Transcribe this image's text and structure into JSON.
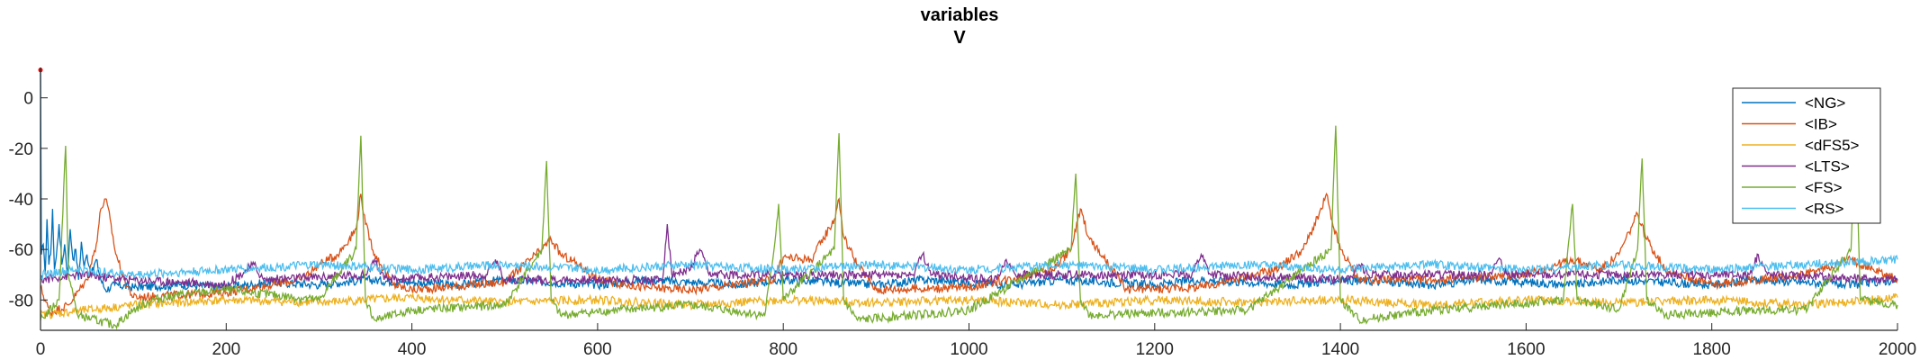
{
  "chart_data": {
    "type": "line",
    "title": "variables",
    "subtitle": "V",
    "xlabel": "",
    "ylabel": "",
    "xlim": [
      0,
      2000
    ],
    "ylim": [
      -92,
      12
    ],
    "xticks": [
      0,
      200,
      400,
      600,
      800,
      1000,
      1200,
      1400,
      1600,
      1800,
      2000
    ],
    "yticks": [
      0,
      -20,
      -40,
      -60,
      -80
    ],
    "grid": false,
    "legend_position": "top-right",
    "series": [
      {
        "name": "<NG>",
        "color": "#0072BD",
        "base": -74,
        "points": [
          [
            0,
            11
          ],
          [
            1,
            -62
          ],
          [
            3,
            -58
          ],
          [
            5,
            -70
          ],
          [
            7,
            -48
          ],
          [
            9,
            -66
          ],
          [
            11,
            -62
          ],
          [
            13,
            -44
          ],
          [
            15,
            -68
          ],
          [
            17,
            -63
          ],
          [
            20,
            -50
          ],
          [
            23,
            -66
          ],
          [
            26,
            -58
          ],
          [
            29,
            -70
          ],
          [
            32,
            -52
          ],
          [
            35,
            -64
          ],
          [
            38,
            -60
          ],
          [
            41,
            -72
          ],
          [
            44,
            -57
          ],
          [
            47,
            -67
          ],
          [
            50,
            -62
          ],
          [
            55,
            -70
          ],
          [
            60,
            -64
          ],
          [
            65,
            -72
          ],
          [
            70,
            -76
          ],
          [
            80,
            -74
          ],
          [
            100,
            -75
          ],
          [
            150,
            -74
          ],
          [
            200,
            -75
          ],
          [
            250,
            -73
          ],
          [
            300,
            -74
          ],
          [
            350,
            -72
          ],
          [
            400,
            -73
          ],
          [
            450,
            -74
          ],
          [
            500,
            -72
          ],
          [
            550,
            -73
          ],
          [
            600,
            -74
          ],
          [
            650,
            -72
          ],
          [
            700,
            -73
          ],
          [
            750,
            -74
          ],
          [
            800,
            -72
          ],
          [
            850,
            -73
          ],
          [
            900,
            -74
          ],
          [
            950,
            -72
          ],
          [
            1000,
            -73
          ],
          [
            1050,
            -74
          ],
          [
            1100,
            -72
          ],
          [
            1150,
            -73
          ],
          [
            1200,
            -74
          ],
          [
            1250,
            -72
          ],
          [
            1300,
            -73
          ],
          [
            1350,
            -74
          ],
          [
            1400,
            -72
          ],
          [
            1450,
            -73
          ],
          [
            1500,
            -74
          ],
          [
            1550,
            -72
          ],
          [
            1600,
            -73
          ],
          [
            1650,
            -74
          ],
          [
            1700,
            -72
          ],
          [
            1750,
            -73
          ],
          [
            1800,
            -74
          ],
          [
            1850,
            -72
          ],
          [
            1900,
            -73
          ],
          [
            1950,
            -74
          ],
          [
            2000,
            -72
          ]
        ]
      },
      {
        "name": "<IB>",
        "color": "#D95319",
        "base": -78,
        "points": [
          [
            0,
            -75
          ],
          [
            10,
            -85
          ],
          [
            30,
            -82
          ],
          [
            50,
            -72
          ],
          [
            60,
            -58
          ],
          [
            65,
            -44
          ],
          [
            70,
            -40
          ],
          [
            75,
            -48
          ],
          [
            80,
            -60
          ],
          [
            90,
            -72
          ],
          [
            100,
            -79
          ],
          [
            200,
            -77
          ],
          [
            280,
            -72
          ],
          [
            300,
            -66
          ],
          [
            320,
            -62
          ],
          [
            340,
            -52
          ],
          [
            345,
            -38
          ],
          [
            350,
            -50
          ],
          [
            360,
            -62
          ],
          [
            380,
            -74
          ],
          [
            400,
            -76
          ],
          [
            500,
            -73
          ],
          [
            540,
            -60
          ],
          [
            550,
            -56
          ],
          [
            560,
            -62
          ],
          [
            580,
            -66
          ],
          [
            600,
            -72
          ],
          [
            650,
            -75
          ],
          [
            700,
            -76
          ],
          [
            790,
            -72
          ],
          [
            800,
            -63
          ],
          [
            830,
            -64
          ],
          [
            855,
            -48
          ],
          [
            860,
            -40
          ],
          [
            865,
            -55
          ],
          [
            880,
            -66
          ],
          [
            900,
            -76
          ],
          [
            1000,
            -75
          ],
          [
            1090,
            -68
          ],
          [
            1110,
            -60
          ],
          [
            1120,
            -44
          ],
          [
            1130,
            -56
          ],
          [
            1150,
            -66
          ],
          [
            1170,
            -76
          ],
          [
            1250,
            -75
          ],
          [
            1330,
            -68
          ],
          [
            1360,
            -60
          ],
          [
            1380,
            -44
          ],
          [
            1385,
            -38
          ],
          [
            1390,
            -48
          ],
          [
            1400,
            -60
          ],
          [
            1420,
            -72
          ],
          [
            1500,
            -72
          ],
          [
            1600,
            -70
          ],
          [
            1650,
            -64
          ],
          [
            1680,
            -68
          ],
          [
            1700,
            -62
          ],
          [
            1720,
            -46
          ],
          [
            1730,
            -56
          ],
          [
            1750,
            -68
          ],
          [
            1800,
            -74
          ],
          [
            1900,
            -70
          ],
          [
            1950,
            -64
          ],
          [
            2000,
            -72
          ]
        ]
      },
      {
        "name": "<dFS5>",
        "color": "#EDB120",
        "base": -82,
        "points": [
          [
            0,
            -86
          ],
          [
            50,
            -84
          ],
          [
            100,
            -82
          ],
          [
            200,
            -80
          ],
          [
            300,
            -81
          ],
          [
            400,
            -79
          ],
          [
            500,
            -81
          ],
          [
            600,
            -80
          ],
          [
            700,
            -82
          ],
          [
            800,
            -80
          ],
          [
            900,
            -81
          ],
          [
            1000,
            -80
          ],
          [
            1100,
            -82
          ],
          [
            1200,
            -80
          ],
          [
            1300,
            -81
          ],
          [
            1400,
            -80
          ],
          [
            1500,
            -82
          ],
          [
            1600,
            -80
          ],
          [
            1700,
            -81
          ],
          [
            1800,
            -80
          ],
          [
            1900,
            -82
          ],
          [
            2000,
            -79
          ]
        ]
      },
      {
        "name": "<LTS>",
        "color": "#7E2F8E",
        "base": -76,
        "points": [
          [
            0,
            -72
          ],
          [
            40,
            -70
          ],
          [
            100,
            -72
          ],
          [
            150,
            -73
          ],
          [
            200,
            -74
          ],
          [
            230,
            -66
          ],
          [
            240,
            -72
          ],
          [
            350,
            -70
          ],
          [
            360,
            -64
          ],
          [
            370,
            -72
          ],
          [
            480,
            -70
          ],
          [
            490,
            -64
          ],
          [
            500,
            -72
          ],
          [
            670,
            -72
          ],
          [
            675,
            -50
          ],
          [
            680,
            -70
          ],
          [
            700,
            -68
          ],
          [
            710,
            -60
          ],
          [
            720,
            -70
          ],
          [
            940,
            -70
          ],
          [
            950,
            -62
          ],
          [
            960,
            -70
          ],
          [
            1030,
            -72
          ],
          [
            1040,
            -64
          ],
          [
            1050,
            -70
          ],
          [
            1240,
            -70
          ],
          [
            1250,
            -62
          ],
          [
            1260,
            -70
          ],
          [
            1410,
            -72
          ],
          [
            1420,
            -66
          ],
          [
            1430,
            -70
          ],
          [
            1560,
            -70
          ],
          [
            1570,
            -64
          ],
          [
            1580,
            -70
          ],
          [
            1840,
            -70
          ],
          [
            1850,
            -62
          ],
          [
            1860,
            -70
          ],
          [
            2000,
            -72
          ]
        ]
      },
      {
        "name": "<FS>",
        "color": "#77AC30",
        "base": -84,
        "points": [
          [
            0,
            -88
          ],
          [
            20,
            -80
          ],
          [
            27,
            -19
          ],
          [
            30,
            -70
          ],
          [
            40,
            -86
          ],
          [
            80,
            -90
          ],
          [
            100,
            -84
          ],
          [
            120,
            -80
          ],
          [
            150,
            -78
          ],
          [
            200,
            -76
          ],
          [
            300,
            -80
          ],
          [
            340,
            -60
          ],
          [
            345,
            -15
          ],
          [
            350,
            -80
          ],
          [
            360,
            -88
          ],
          [
            400,
            -84
          ],
          [
            500,
            -82
          ],
          [
            540,
            -60
          ],
          [
            545,
            -25
          ],
          [
            550,
            -80
          ],
          [
            560,
            -86
          ],
          [
            620,
            -84
          ],
          [
            700,
            -82
          ],
          [
            780,
            -86
          ],
          [
            790,
            -60
          ],
          [
            795,
            -42
          ],
          [
            800,
            -80
          ],
          [
            855,
            -60
          ],
          [
            860,
            -14
          ],
          [
            865,
            -80
          ],
          [
            880,
            -88
          ],
          [
            1000,
            -84
          ],
          [
            1110,
            -60
          ],
          [
            1115,
            -30
          ],
          [
            1120,
            -80
          ],
          [
            1130,
            -86
          ],
          [
            1300,
            -84
          ],
          [
            1390,
            -60
          ],
          [
            1395,
            -11
          ],
          [
            1400,
            -80
          ],
          [
            1420,
            -88
          ],
          [
            1500,
            -84
          ],
          [
            1640,
            -80
          ],
          [
            1650,
            -42
          ],
          [
            1655,
            -80
          ],
          [
            1700,
            -84
          ],
          [
            1720,
            -60
          ],
          [
            1725,
            -24
          ],
          [
            1730,
            -80
          ],
          [
            1750,
            -86
          ],
          [
            1850,
            -84
          ],
          [
            1900,
            -84
          ],
          [
            1950,
            -60
          ],
          [
            1955,
            -12
          ],
          [
            1960,
            -80
          ],
          [
            2000,
            -82
          ]
        ]
      },
      {
        "name": "<RS>",
        "color": "#4DBEEE",
        "base": -72,
        "points": [
          [
            0,
            -70
          ],
          [
            40,
            -68
          ],
          [
            100,
            -70
          ],
          [
            200,
            -68
          ],
          [
            300,
            -66
          ],
          [
            400,
            -68
          ],
          [
            500,
            -66
          ],
          [
            600,
            -68
          ],
          [
            700,
            -66
          ],
          [
            800,
            -68
          ],
          [
            900,
            -66
          ],
          [
            1000,
            -68
          ],
          [
            1100,
            -66
          ],
          [
            1200,
            -68
          ],
          [
            1300,
            -66
          ],
          [
            1400,
            -68
          ],
          [
            1500,
            -66
          ],
          [
            1600,
            -68
          ],
          [
            1700,
            -66
          ],
          [
            1800,
            -68
          ],
          [
            1900,
            -66
          ],
          [
            2000,
            -64
          ]
        ]
      }
    ]
  }
}
